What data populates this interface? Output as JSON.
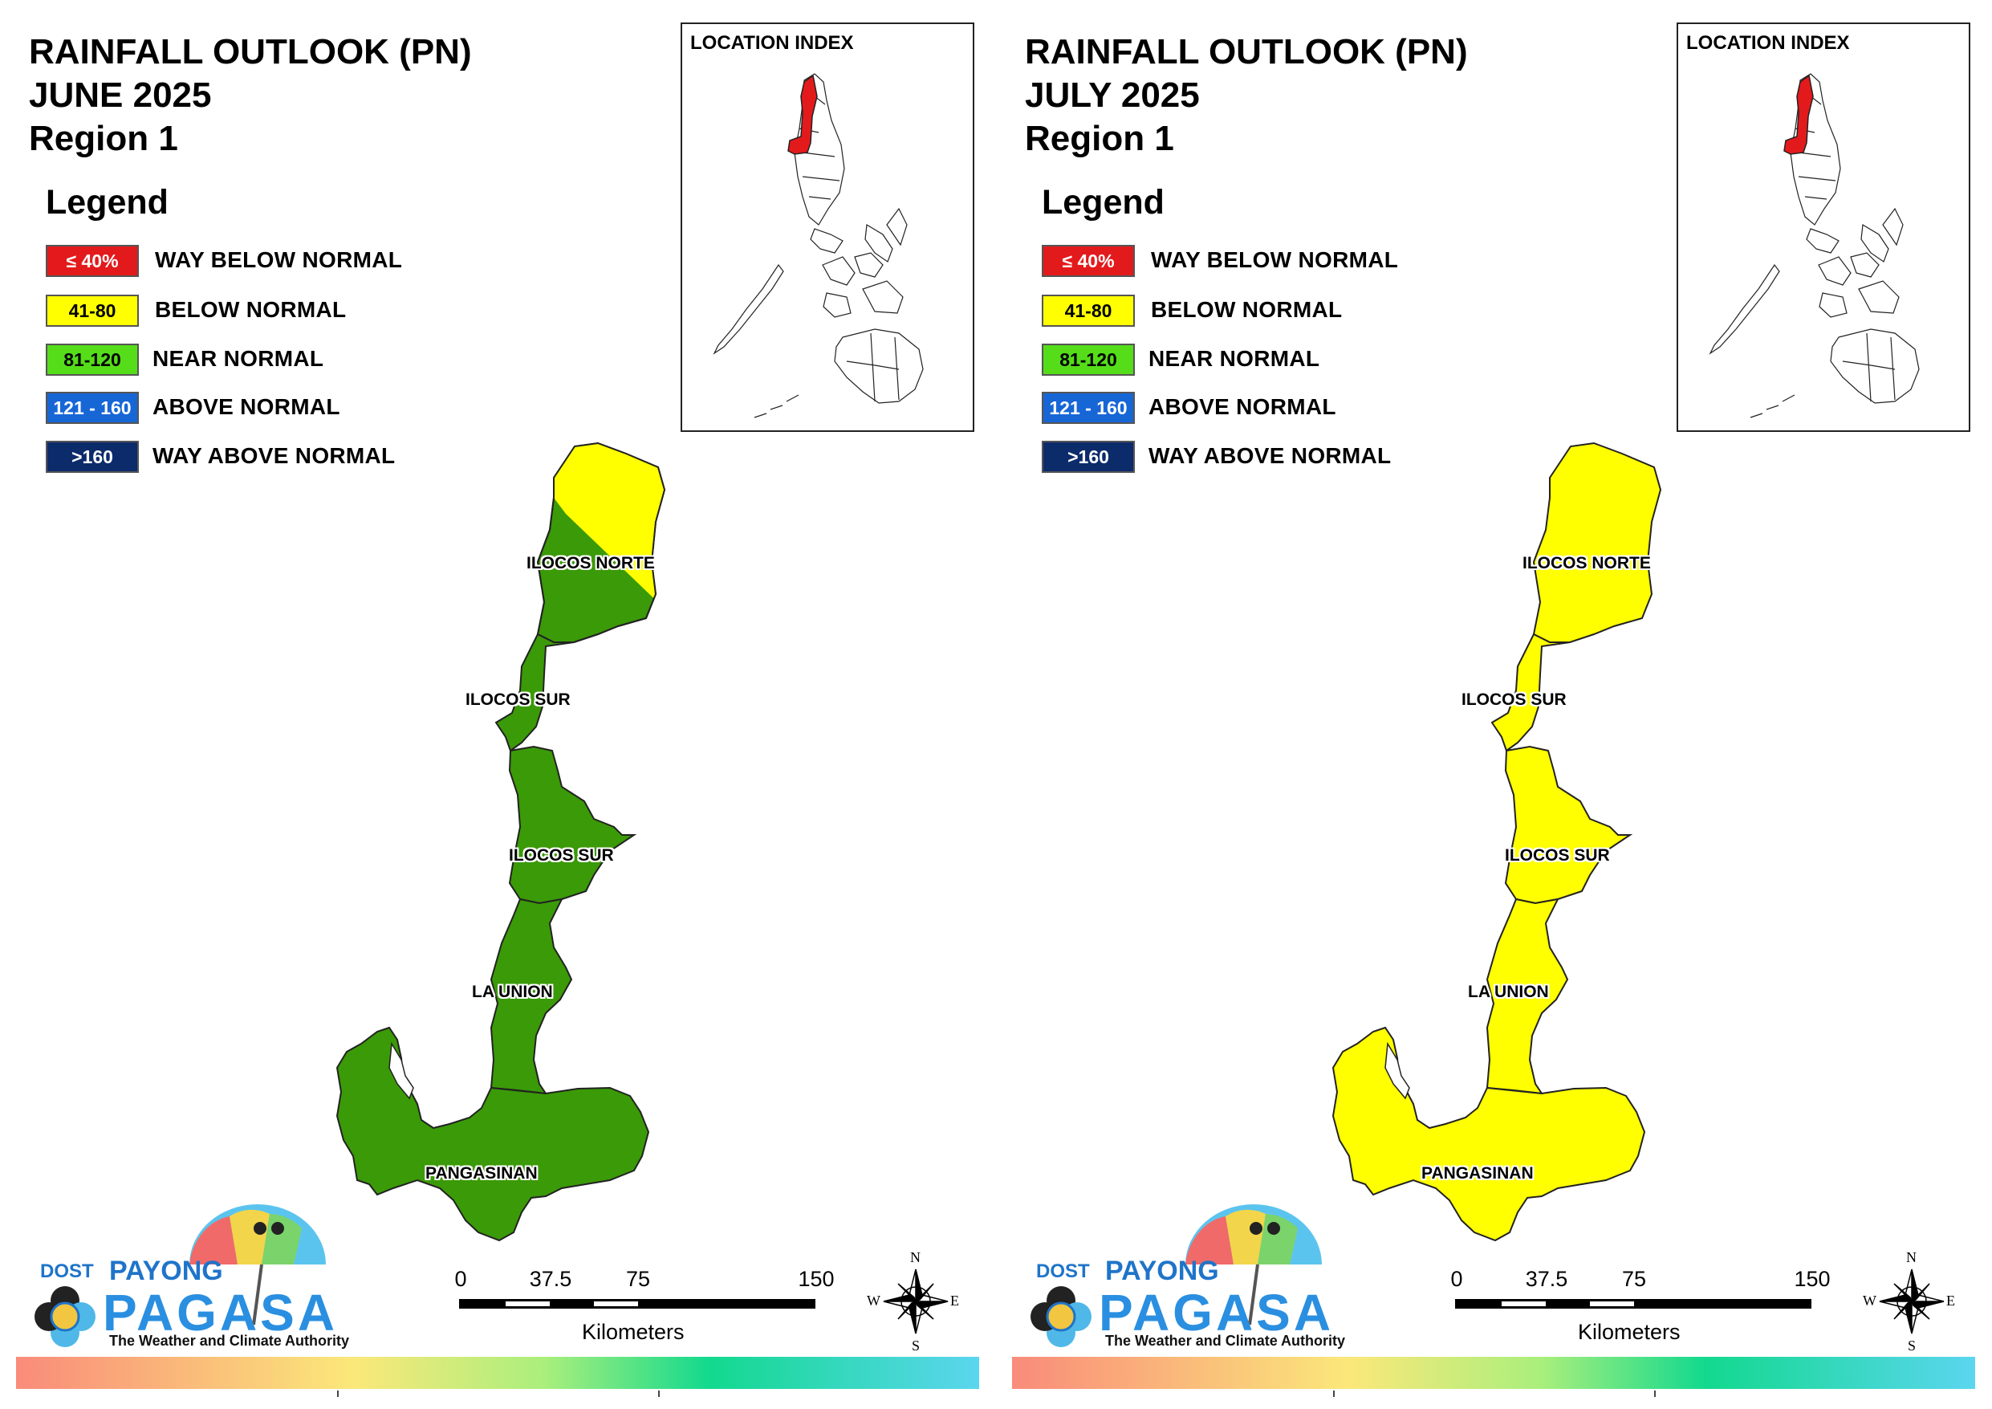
{
  "colors": {
    "way_below": "#e31a1c",
    "below": "#ffff00",
    "near": "#3a9a07",
    "near_swatch": "#55dd1a",
    "above": "#1766d6",
    "way_above": "#0c2b6b",
    "highlight_region": "#e31a1c",
    "bar_gradient": [
      "#f98b7a",
      "#fbe87a",
      "#a9ef7c",
      "#12d98e",
      "#5bd6ef"
    ]
  },
  "legend": {
    "title": "Legend",
    "items": [
      {
        "range": "≤ 40%",
        "label": "WAY BELOW NORMAL",
        "color": "#e31a1c",
        "text_color": "#ffffff"
      },
      {
        "range": "41-80",
        "label": "BELOW NORMAL",
        "color": "#ffff00",
        "text_color": "#000000"
      },
      {
        "range": "81-120",
        "label": "NEAR NORMAL",
        "color": "#55dd1a",
        "text_color": "#000000"
      },
      {
        "range": "121 - 160",
        "label": "ABOVE NORMAL",
        "color": "#1766d6",
        "text_color": "#ffffff"
      },
      {
        "range": ">160",
        "label": "WAY ABOVE NORMAL",
        "color": "#0c2b6b",
        "text_color": "#ffffff"
      }
    ]
  },
  "inset": {
    "title": "LOCATION INDEX"
  },
  "panels": [
    {
      "title_line1": "RAINFALL OUTLOOK (PN)",
      "title_line2": "JUNE 2025",
      "title_line3": "Region 1",
      "fill_main": "#3a9a07",
      "fill_ne_corner": "#ffff00",
      "category": "NEAR NORMAL (81-120) with BELOW NORMAL in northeast Ilocos Norte"
    },
    {
      "title_line1": "RAINFALL OUTLOOK (PN)",
      "title_line2": "JULY 2025",
      "title_line3": "Region 1",
      "fill_main": "#ffff00",
      "fill_ne_corner": "#ffff00",
      "category": "BELOW NORMAL (41-80)"
    }
  ],
  "provinces": [
    "ILOCOS NORTE",
    "ILOCOS SUR",
    "ILOCOS SUR",
    "LA UNION",
    "PANGASINAN"
  ],
  "scalebar": {
    "ticks": [
      "0",
      "37.5",
      "75",
      "150"
    ],
    "unit": "Kilometers"
  },
  "compass": {
    "n": "N",
    "s": "S",
    "e": "E",
    "w": "W",
    "icon": "compass-rose-icon"
  },
  "logo": {
    "dost": "DOST",
    "payong": "PAYONG",
    "pagasa": "PAGASA",
    "tagline": "The Weather and Climate Authority",
    "icon": "umbrella-logo-icon"
  }
}
